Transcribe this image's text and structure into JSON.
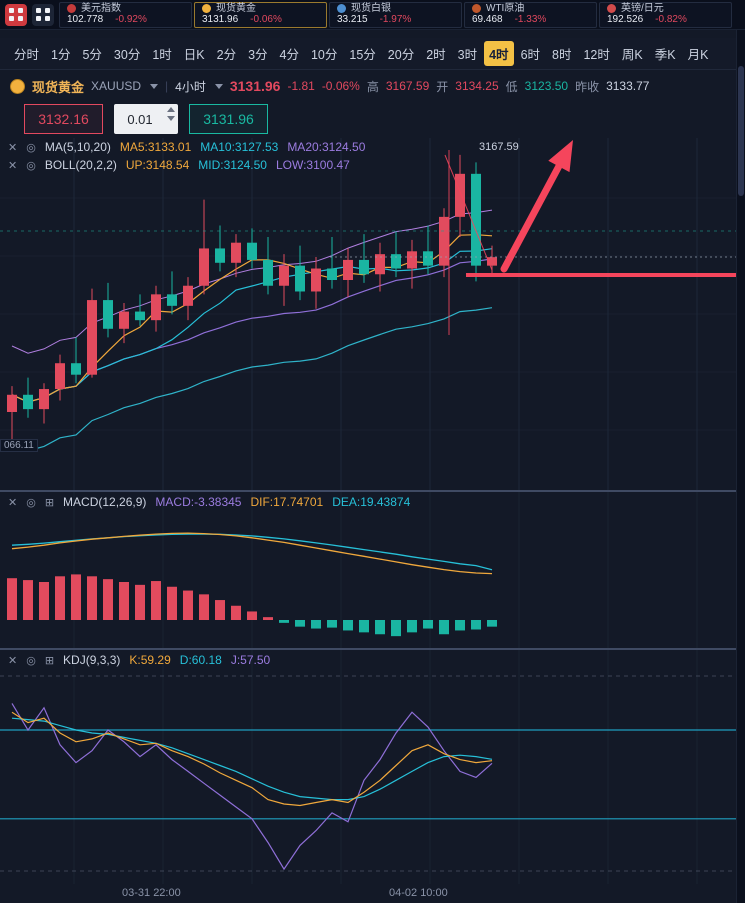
{
  "topbar": {
    "tickers": [
      {
        "name": "美元指数",
        "value": "102.778",
        "change": "-0.92%",
        "dot_color": "#c43b3b",
        "selected": false
      },
      {
        "name": "现货黄金",
        "value": "3131.96",
        "change": "-0.06%",
        "dot_color": "#f0b13e",
        "selected": true
      },
      {
        "name": "现货白银",
        "value": "33.215",
        "change": "-1.97%",
        "dot_color": "#4d8fd1",
        "selected": false
      },
      {
        "name": "WTI原油",
        "value": "69.468",
        "change": "-1.33%",
        "dot_color": "#c0572b",
        "selected": false
      },
      {
        "name": "英镑/日元",
        "value": "192.526",
        "change": "-0.82%",
        "dot_color": "#d14b4b",
        "selected": false
      }
    ]
  },
  "timeframes": {
    "items": [
      "分时",
      "1分",
      "5分",
      "30分",
      "1时",
      "日K",
      "2分",
      "3分",
      "4分",
      "10分",
      "15分",
      "20分",
      "2时",
      "3时",
      "4时",
      "6时",
      "8时",
      "12时",
      "周K",
      "季K",
      "月K"
    ],
    "selected": "4时"
  },
  "instrument": {
    "name": "现货黄金",
    "symbol": "XAUUSD",
    "period": "4小时",
    "price": "3131.96",
    "change": "-1.81",
    "change_pct": "-0.06%",
    "high_label": "高",
    "high": "3167.59",
    "open_label": "开",
    "open": "3134.25",
    "low_label": "低",
    "low": "3123.50",
    "prev_label": "昨收",
    "prev_close": "3133.77"
  },
  "order": {
    "sell_price": "3132.16",
    "qty": "0.01",
    "buy_price": "3131.96"
  },
  "icons": {
    "close": "✕",
    "settings": "◎",
    "expand": "⊞"
  },
  "indicators": {
    "ma": {
      "title": "MA(5,10,20)",
      "ma5": "MA5:3133.01",
      "ma10": "MA10:3127.53",
      "ma20": "MA20:3124.50"
    },
    "boll": {
      "title": "BOLL(20,2,2)",
      "up": "UP:3148.54",
      "mid": "MID:3124.50",
      "low": "LOW:3100.47"
    },
    "macd": {
      "title": "MACD(12,26,9)",
      "macd": "MACD:-3.38345",
      "dif": "DIF:17.74701",
      "dea": "DEA:19.43874"
    },
    "kdj": {
      "title": "KDJ(9,3,3)",
      "k": "K:59.29",
      "d": "D:60.18",
      "j": "J:57.50"
    }
  },
  "chart_annotations": {
    "high_label": "3167.59",
    "left_price_label": "066.11"
  },
  "axis": {
    "labels": [
      "03-31 22:00",
      "04-02 10:00"
    ]
  },
  "colors": {
    "up": "#e24b5e",
    "down": "#1ab5a2",
    "ma5": "#f0a83c",
    "ma10": "#27c0d8",
    "ma20": "#8f6fd8",
    "boll_up": "#b07fe0",
    "boll_low": "#2fb3c9",
    "annotation_red": "#f5455c",
    "ref_cyan": "#1f9fc0",
    "grid": "#1d2738",
    "accent_yellow": "#f3c145"
  },
  "chart_data": {
    "type": "candlestick",
    "period": "4h",
    "price_range": [
      3055,
      3170
    ],
    "candles": [
      [
        3078,
        3087,
        3068,
        3084
      ],
      [
        3084,
        3090,
        3076,
        3079
      ],
      [
        3079,
        3088,
        3074,
        3086
      ],
      [
        3086,
        3098,
        3082,
        3095
      ],
      [
        3095,
        3104,
        3088,
        3091
      ],
      [
        3091,
        3121,
        3090,
        3117
      ],
      [
        3117,
        3123,
        3104,
        3107
      ],
      [
        3107,
        3116,
        3102,
        3113
      ],
      [
        3113,
        3119,
        3108,
        3110
      ],
      [
        3110,
        3122,
        3106,
        3119
      ],
      [
        3119,
        3127,
        3112,
        3115
      ],
      [
        3115,
        3125,
        3110,
        3122
      ],
      [
        3122,
        3152,
        3119,
        3135
      ],
      [
        3135,
        3143,
        3127,
        3130
      ],
      [
        3130,
        3140,
        3125,
        3137
      ],
      [
        3137,
        3142,
        3128,
        3131
      ],
      [
        3131,
        3139,
        3119,
        3122
      ],
      [
        3122,
        3133,
        3115,
        3129
      ],
      [
        3129,
        3136,
        3117,
        3120
      ],
      [
        3120,
        3132,
        3114,
        3128
      ],
      [
        3128,
        3139,
        3121,
        3124
      ],
      [
        3124,
        3135,
        3118,
        3131
      ],
      [
        3131,
        3140,
        3123,
        3126
      ],
      [
        3126,
        3137,
        3120,
        3133
      ],
      [
        3133,
        3141,
        3125,
        3128
      ],
      [
        3128,
        3138,
        3121,
        3134
      ],
      [
        3134,
        3143,
        3126,
        3129
      ],
      [
        3129,
        3149,
        3125,
        3146
      ],
      [
        3146,
        3167.59,
        3139,
        3161
      ],
      [
        3161,
        3165,
        3123.5,
        3129
      ],
      [
        3129,
        3136,
        3126,
        3131.96
      ]
    ],
    "macd": {
      "hist": [
        4.4,
        4.2,
        4.0,
        4.6,
        4.8,
        4.6,
        4.3,
        4.0,
        3.7,
        4.1,
        3.5,
        3.1,
        2.7,
        2.1,
        1.5,
        0.9,
        0.3,
        -0.3,
        -0.7,
        -0.9,
        -0.8,
        -1.1,
        -1.3,
        -1.5,
        -1.7,
        -1.3,
        -0.9,
        -1.5,
        -1.1,
        -1.0,
        -0.7
      ],
      "dif": [
        28.5,
        29.2,
        30,
        31,
        31.8,
        32.6,
        33.2,
        33.8,
        34.3,
        34.8,
        35.1,
        35.2,
        35,
        34.6,
        34,
        33.2,
        32.2,
        31.2,
        30,
        28.8,
        27.6,
        26.4,
        25.2,
        24,
        22.8,
        21.6,
        20.5,
        19.5,
        18.6,
        18,
        17.75
      ],
      "dea": [
        30,
        30.4,
        30.9,
        31.5,
        32.1,
        32.7,
        33.2,
        33.7,
        34.1,
        34.4,
        34.7,
        34.8,
        34.8,
        34.7,
        34.4,
        34,
        33.4,
        32.7,
        31.9,
        31,
        30.1,
        29.1,
        28.1,
        27.1,
        26.1,
        25,
        24,
        23,
        22,
        21.2,
        19.44
      ]
    },
    "kdj": {
      "k": [
        92,
        85,
        88,
        78,
        72,
        74,
        78,
        74,
        70,
        71,
        66,
        62,
        57,
        51,
        46,
        41,
        33,
        30,
        29,
        31,
        33,
        31,
        38,
        46,
        56,
        66,
        70,
        64,
        60,
        58,
        59.29
      ],
      "d": [
        88,
        87,
        86,
        83,
        80,
        78,
        77,
        75,
        73,
        71,
        68,
        64,
        60,
        56,
        52,
        47,
        42,
        38,
        35,
        34,
        33,
        33,
        35,
        40,
        46,
        52,
        58,
        62,
        63,
        62,
        60.18
      ],
      "j": [
        98,
        80,
        95,
        70,
        58,
        66,
        80,
        72,
        62,
        70,
        60,
        52,
        44,
        36,
        28,
        20,
        4,
        -14,
        2,
        12,
        24,
        18,
        46,
        60,
        78,
        92,
        82,
        66,
        52,
        48,
        57.5
      ],
      "ref_lines": [
        80,
        20
      ]
    },
    "x_axis_labels": [
      "03-31 22:00",
      "04-02 10:00"
    ]
  }
}
